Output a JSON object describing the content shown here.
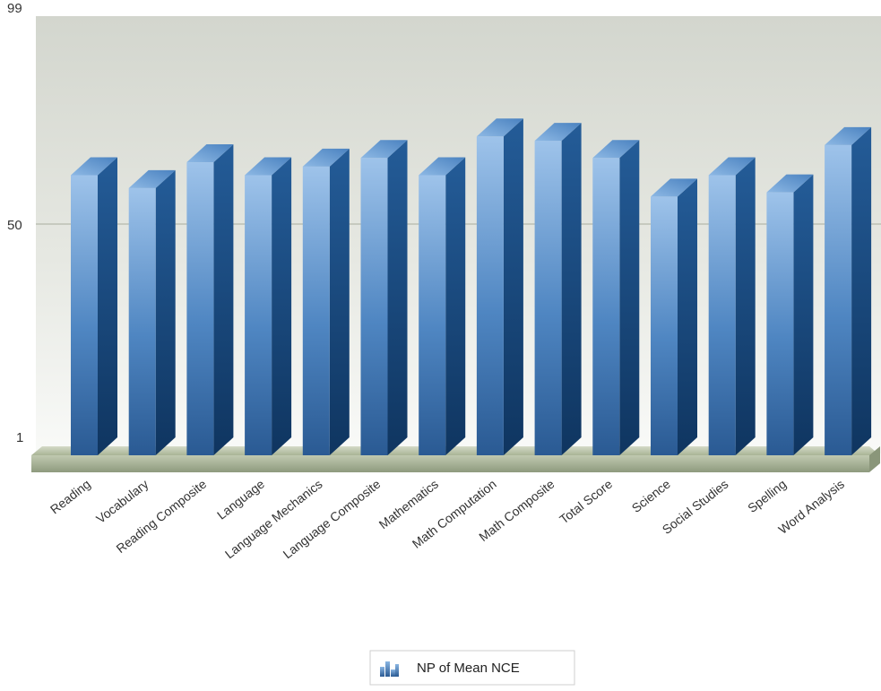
{
  "chart_data": {
    "type": "bar",
    "title": "",
    "xlabel": "",
    "ylabel": "",
    "categories": [
      "Reading",
      "Vocabulary",
      "Reading Composite",
      "Language",
      "Language Mechanics",
      "Language Composite",
      "Mathematics",
      "Math Computation",
      "Math Composite",
      "Total Score",
      "Science",
      "Social Studies",
      "Spelling",
      "Word Analysis"
    ],
    "series": [
      {
        "name": "NP of Mean NCE",
        "values": [
          62,
          59,
          65,
          62,
          64,
          66,
          62,
          71,
          70,
          66,
          57,
          62,
          58,
          69
        ],
        "color": "#2f67a8"
      }
    ],
    "ylim": [
      1,
      99
    ],
    "yticks": [
      "1",
      "50",
      "99"
    ],
    "grid": true,
    "legend": "bottom-center",
    "style": "3d-cylinder-bars",
    "colors": {
      "bar_front_top": "#9ec3ea",
      "bar_front_bottom": "#2c5d96",
      "bar_side": "#14406e",
      "bar_top": "#7fb0e2",
      "floor": "#a8b59a",
      "background_top": "#eceee8",
      "background_bottom": "#ffffff"
    }
  }
}
